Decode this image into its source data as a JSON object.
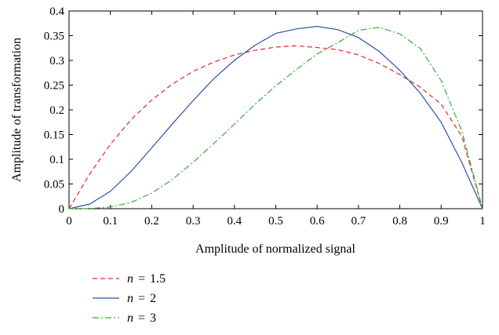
{
  "chart_data": {
    "type": "line",
    "title": "",
    "xlabel": "Amplitude of normalized signal",
    "ylabel": "Amplitude of transformation",
    "xlim": [
      0,
      1
    ],
    "ylim": [
      0,
      0.4
    ],
    "xticks": [
      0,
      0.1,
      0.2,
      0.3,
      0.4,
      0.5,
      0.6,
      0.7,
      0.8,
      0.9,
      1
    ],
    "yticks": [
      0,
      0.05,
      0.1,
      0.15,
      0.2,
      0.25,
      0.3,
      0.35,
      0.4
    ],
    "xtick_labels": [
      "0",
      "0.1",
      "0.2",
      "0.3",
      "0.4",
      "0.5",
      "0.6",
      "0.7",
      "0.8",
      "0.9",
      "1"
    ],
    "ytick_labels": [
      "0",
      "0.05",
      "0.1",
      "0.15",
      "0.2",
      "0.25",
      "0.3",
      "0.35",
      "0.4"
    ],
    "grid": false,
    "legend_position": "below",
    "x": [
      0,
      0.05,
      0.1,
      0.15,
      0.2,
      0.25,
      0.3,
      0.35,
      0.4,
      0.45,
      0.5,
      0.55,
      0.6,
      0.65,
      0.7,
      0.75,
      0.8,
      0.85,
      0.9,
      0.95,
      1
    ],
    "series": [
      {
        "name": "1.5",
        "legend_var": "n",
        "legend_eq": "=",
        "color": "#e8262a",
        "dash": "dashed",
        "values": [
          0,
          0.0702,
          0.1303,
          0.1802,
          0.2199,
          0.2522,
          0.2778,
          0.2966,
          0.3111,
          0.3205,
          0.3269,
          0.3296,
          0.3261,
          0.3218,
          0.3111,
          0.2937,
          0.2713,
          0.2455,
          0.2113,
          0.1462,
          0
        ]
      },
      {
        "name": "2",
        "legend_var": "n",
        "legend_eq": "=",
        "color": "#2a52a8",
        "dash": "solid",
        "values": [
          0,
          0.0093,
          0.0353,
          0.0754,
          0.1232,
          0.1715,
          0.2186,
          0.263,
          0.3002,
          0.3307,
          0.3546,
          0.3638,
          0.3688,
          0.3622,
          0.3463,
          0.3182,
          0.2799,
          0.2331,
          0.1747,
          0.0932,
          0
        ]
      },
      {
        "name": "3",
        "legend_var": "n",
        "legend_eq": "=",
        "color": "#35b035",
        "dash": "dashdot",
        "values": [
          0,
          0.0003,
          0.0033,
          0.0127,
          0.0314,
          0.0592,
          0.0938,
          0.1318,
          0.1711,
          0.2112,
          0.2485,
          0.2818,
          0.3128,
          0.3359,
          0.361,
          0.3668,
          0.3537,
          0.3237,
          0.259,
          0.157,
          0
        ]
      }
    ]
  }
}
